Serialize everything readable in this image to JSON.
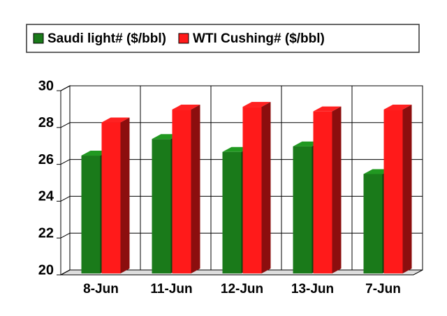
{
  "chart_data": {
    "type": "bar",
    "categories": [
      "8-Jun",
      "11-Jun",
      "12-Jun",
      "13-Jun",
      "7-Jun"
    ],
    "series": [
      {
        "name": "Saudi light# ($/bbl)",
        "color": "#1a7a1a",
        "values": [
          26.4,
          27.3,
          26.6,
          26.9,
          25.4
        ]
      },
      {
        "name": "WTI Cushing# ($/bbl)",
        "color": "#ff1a1a",
        "values": [
          28.2,
          28.9,
          29.05,
          28.8,
          28.9
        ]
      }
    ],
    "ylim": [
      20,
      30
    ],
    "yticks": [
      20,
      22,
      24,
      26,
      28,
      30
    ],
    "grid": true,
    "legend": "top"
  }
}
